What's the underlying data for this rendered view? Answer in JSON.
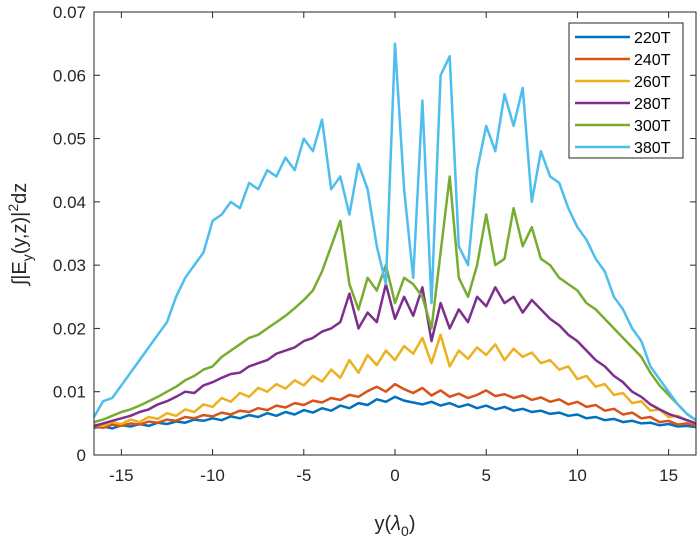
{
  "chart_data": {
    "type": "line",
    "title": "",
    "xlabel": {
      "base": "y(",
      "greek": "λ",
      "sub": "0",
      "close": ")"
    },
    "ylabel": {
      "prefix": "∫|E",
      "sub": "y",
      "mid": "(y,z)|",
      "sup": "2",
      "suffix": "dz"
    },
    "xlim": [
      -16.5,
      16.5
    ],
    "ylim": [
      0,
      0.07
    ],
    "x_range_of_samples": [
      -16.5,
      16.5
    ],
    "xticks": [
      -15,
      -10,
      -5,
      0,
      5,
      10,
      15
    ],
    "xtick_labels": [
      "-15",
      "-10",
      "-5",
      "0",
      "5",
      "10",
      "15"
    ],
    "yticks": [
      0,
      0.01,
      0.02,
      0.03,
      0.04,
      0.05,
      0.06,
      0.07
    ],
    "ytick_labels": [
      "0",
      "0.01",
      "0.02",
      "0.03",
      "0.04",
      "0.05",
      "0.06",
      "0.07"
    ],
    "grid": false,
    "legend_position": "top-right",
    "series": [
      {
        "name": "220T",
        "color": "#0072BD",
        "values": [
          0.0043,
          0.0045,
          0.0042,
          0.0047,
          0.0045,
          0.0049,
          0.0046,
          0.0051,
          0.0049,
          0.0053,
          0.0051,
          0.0056,
          0.0054,
          0.0058,
          0.0055,
          0.0061,
          0.0058,
          0.0063,
          0.006,
          0.0066,
          0.0062,
          0.0068,
          0.0064,
          0.0071,
          0.0067,
          0.0074,
          0.007,
          0.0078,
          0.0074,
          0.0082,
          0.0079,
          0.0088,
          0.0084,
          0.0092,
          0.0086,
          0.0083,
          0.008,
          0.0084,
          0.0078,
          0.0082,
          0.0076,
          0.008,
          0.0074,
          0.0078,
          0.0072,
          0.0076,
          0.007,
          0.0073,
          0.0068,
          0.007,
          0.0065,
          0.0067,
          0.0062,
          0.0064,
          0.0058,
          0.006,
          0.0055,
          0.0057,
          0.0052,
          0.0054,
          0.005,
          0.0051,
          0.0047,
          0.0049,
          0.0045,
          0.0046,
          0.0044
        ]
      },
      {
        "name": "240T",
        "color": "#D95319",
        "values": [
          0.0045,
          0.0043,
          0.0048,
          0.0046,
          0.005,
          0.0048,
          0.0053,
          0.0051,
          0.0056,
          0.0054,
          0.006,
          0.0058,
          0.0063,
          0.0061,
          0.0067,
          0.0064,
          0.007,
          0.0068,
          0.0074,
          0.0071,
          0.0078,
          0.0075,
          0.0082,
          0.0079,
          0.0086,
          0.0083,
          0.009,
          0.0087,
          0.0095,
          0.0092,
          0.0101,
          0.0108,
          0.01,
          0.0112,
          0.0104,
          0.0098,
          0.0106,
          0.0094,
          0.0102,
          0.0092,
          0.0097,
          0.009,
          0.0095,
          0.0102,
          0.0093,
          0.0096,
          0.009,
          0.0094,
          0.0087,
          0.0091,
          0.0084,
          0.0088,
          0.008,
          0.0084,
          0.0076,
          0.0079,
          0.007,
          0.0073,
          0.0064,
          0.0067,
          0.0058,
          0.006,
          0.0052,
          0.0054,
          0.0048,
          0.005,
          0.0046
        ]
      },
      {
        "name": "260T",
        "color": "#EDB120",
        "values": [
          0.0048,
          0.0046,
          0.0052,
          0.0049,
          0.0056,
          0.0052,
          0.006,
          0.0057,
          0.0066,
          0.0062,
          0.0072,
          0.0068,
          0.008,
          0.0076,
          0.009,
          0.0084,
          0.0098,
          0.0092,
          0.0106,
          0.01,
          0.0112,
          0.0105,
          0.0118,
          0.011,
          0.0125,
          0.0116,
          0.0135,
          0.0122,
          0.015,
          0.013,
          0.0158,
          0.0142,
          0.0165,
          0.015,
          0.0172,
          0.016,
          0.0185,
          0.0145,
          0.019,
          0.014,
          0.0165,
          0.0152,
          0.017,
          0.0158,
          0.0175,
          0.015,
          0.0168,
          0.0155,
          0.0162,
          0.0145,
          0.015,
          0.0135,
          0.014,
          0.012,
          0.0125,
          0.0108,
          0.0112,
          0.0095,
          0.0098,
          0.0082,
          0.0085,
          0.007,
          0.0072,
          0.006,
          0.0062,
          0.0055,
          0.005
        ]
      },
      {
        "name": "280T",
        "color": "#7E2F8E",
        "values": [
          0.0046,
          0.005,
          0.0054,
          0.0058,
          0.0062,
          0.0068,
          0.0072,
          0.008,
          0.0085,
          0.0092,
          0.01,
          0.0098,
          0.011,
          0.0115,
          0.0122,
          0.0128,
          0.013,
          0.014,
          0.0145,
          0.015,
          0.016,
          0.0165,
          0.017,
          0.018,
          0.0185,
          0.0195,
          0.02,
          0.021,
          0.0255,
          0.02,
          0.0225,
          0.021,
          0.027,
          0.0215,
          0.025,
          0.022,
          0.0265,
          0.018,
          0.024,
          0.02,
          0.023,
          0.021,
          0.025,
          0.0235,
          0.0265,
          0.024,
          0.025,
          0.0225,
          0.0245,
          0.023,
          0.0215,
          0.0205,
          0.019,
          0.018,
          0.0165,
          0.015,
          0.014,
          0.0125,
          0.0115,
          0.01,
          0.0092,
          0.008,
          0.0072,
          0.0065,
          0.006,
          0.0055,
          0.005
        ]
      },
      {
        "name": "300T",
        "color": "#77AC30",
        "values": [
          0.0052,
          0.0056,
          0.0062,
          0.0068,
          0.0072,
          0.0078,
          0.0085,
          0.0092,
          0.01,
          0.0108,
          0.0118,
          0.0125,
          0.0135,
          0.014,
          0.0155,
          0.0165,
          0.0175,
          0.0185,
          0.019,
          0.02,
          0.021,
          0.022,
          0.0232,
          0.0245,
          0.026,
          0.029,
          0.033,
          0.037,
          0.027,
          0.023,
          0.028,
          0.026,
          0.03,
          0.024,
          0.028,
          0.027,
          0.025,
          0.02,
          0.032,
          0.044,
          0.028,
          0.025,
          0.03,
          0.038,
          0.03,
          0.031,
          0.039,
          0.033,
          0.036,
          0.031,
          0.03,
          0.028,
          0.027,
          0.026,
          0.024,
          0.023,
          0.0215,
          0.02,
          0.0185,
          0.017,
          0.0155,
          0.013,
          0.011,
          0.0095,
          0.008,
          0.0065,
          0.0055
        ]
      },
      {
        "name": "380T",
        "color": "#4DBEEE",
        "values": [
          0.006,
          0.0085,
          0.009,
          0.011,
          0.013,
          0.015,
          0.017,
          0.019,
          0.021,
          0.025,
          0.028,
          0.03,
          0.032,
          0.037,
          0.038,
          0.04,
          0.039,
          0.043,
          0.042,
          0.045,
          0.044,
          0.047,
          0.045,
          0.05,
          0.048,
          0.053,
          0.042,
          0.044,
          0.038,
          0.046,
          0.042,
          0.033,
          0.027,
          0.065,
          0.042,
          0.028,
          0.056,
          0.024,
          0.06,
          0.063,
          0.033,
          0.03,
          0.045,
          0.052,
          0.048,
          0.057,
          0.052,
          0.058,
          0.04,
          0.048,
          0.044,
          0.043,
          0.039,
          0.036,
          0.034,
          0.031,
          0.029,
          0.025,
          0.023,
          0.02,
          0.018,
          0.014,
          0.012,
          0.01,
          0.008,
          0.0065,
          0.0055
        ]
      }
    ]
  }
}
